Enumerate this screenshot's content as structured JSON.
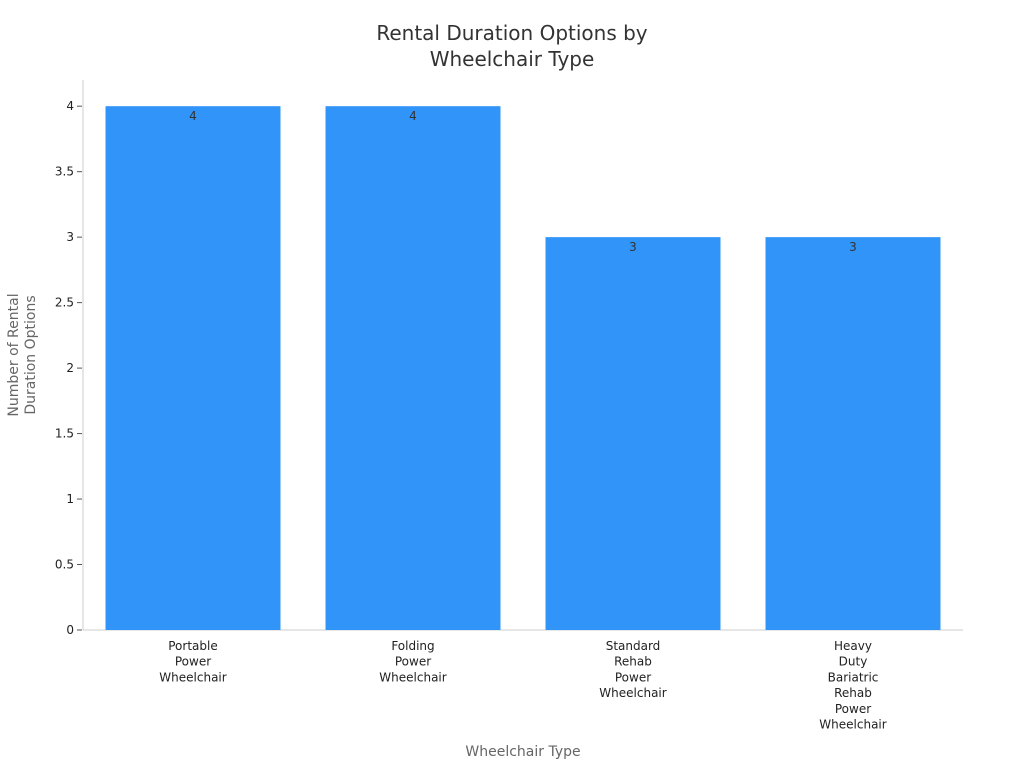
{
  "chart_data": {
    "type": "bar",
    "title": "Rental Duration Options by Wheelchair Type",
    "title_lines": [
      "Rental Duration Options by",
      "Wheelchair Type"
    ],
    "xlabel": "Wheelchair Type",
    "ylabel": "Number of Rental Duration Options",
    "ylabel_lines": [
      "Number of Rental",
      "Duration Options"
    ],
    "categories": [
      "Portable Power Wheelchair",
      "Folding Power Wheelchair",
      "Standard Rehab Power Wheelchair",
      "Heavy Duty Bariatric Rehab Power Wheelchair"
    ],
    "category_lines": [
      [
        "Portable",
        "Power",
        "Wheelchair"
      ],
      [
        "Folding",
        "Power",
        "Wheelchair"
      ],
      [
        "Standard",
        "Rehab",
        "Power",
        "Wheelchair"
      ],
      [
        "Heavy",
        "Duty",
        "Bariatric",
        "Rehab",
        "Power",
        "Wheelchair"
      ]
    ],
    "values": [
      4,
      4,
      3,
      3
    ],
    "data_labels": [
      "4",
      "4",
      "3",
      "3"
    ],
    "yticks": [
      0,
      0.5,
      1,
      1.5,
      2,
      2.5,
      3,
      3.5,
      4
    ],
    "ytick_labels": [
      "0",
      "0.5",
      "1",
      "1.5",
      "2",
      "2.5",
      "3",
      "3.5",
      "4"
    ],
    "ylim": [
      0,
      4.2
    ],
    "grid": false,
    "legend": "none",
    "colors": {
      "bar": "#3094f8",
      "axis": "#cccccc",
      "text": "#333333"
    }
  }
}
